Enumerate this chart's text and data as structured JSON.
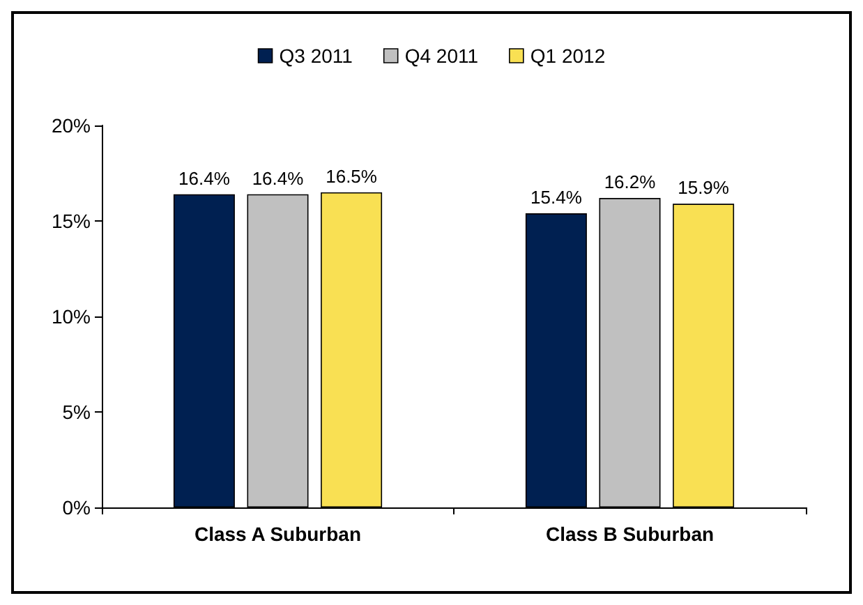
{
  "chart_data": {
    "type": "bar",
    "categories": [
      "Class A Suburban",
      "Class B Suburban"
    ],
    "series": [
      {
        "name": "Q3 2011",
        "color": "#002051",
        "values": [
          16.4,
          15.4
        ]
      },
      {
        "name": "Q4 2011",
        "color": "#c0c0c0",
        "values": [
          16.4,
          16.2
        ]
      },
      {
        "name": "Q1 2012",
        "color": "#f9e053",
        "values": [
          16.5,
          15.9
        ]
      }
    ],
    "value_labels": [
      [
        "16.4%",
        "15.4%"
      ],
      [
        "16.4%",
        "16.2%"
      ],
      [
        "16.5%",
        "15.9%"
      ]
    ],
    "ylim": [
      0,
      20
    ],
    "yticks": [
      {
        "value": 0,
        "label": "0%"
      },
      {
        "value": 5,
        "label": "5%"
      },
      {
        "value": 10,
        "label": "10%"
      },
      {
        "value": 15,
        "label": "15%"
      },
      {
        "value": 20,
        "label": "20%"
      }
    ],
    "grid": false,
    "legend": "top"
  }
}
